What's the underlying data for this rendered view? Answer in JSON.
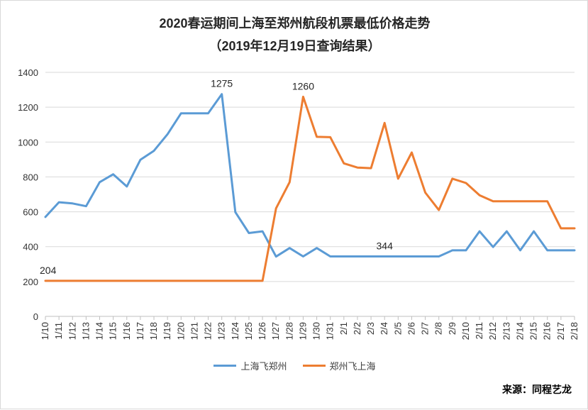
{
  "chart_data": {
    "type": "line",
    "title": "2020春运期间上海至郑州航段机票最低价格走势",
    "subtitle": "（2019年12月19日查询结果）",
    "categories": [
      "1/10",
      "1/11",
      "1/12",
      "1/13",
      "1/14",
      "1/15",
      "1/16",
      "1/17",
      "1/18",
      "1/19",
      "1/20",
      "1/21",
      "1/22",
      "1/23",
      "1/24",
      "1/25",
      "1/26",
      "1/27",
      "1/28",
      "1/29",
      "1/30",
      "1/31",
      "2/1",
      "2/2",
      "2/3",
      "2/4",
      "2/5",
      "2/6",
      "2/7",
      "2/8",
      "2/9",
      "2/10",
      "2/11",
      "2/12",
      "2/13",
      "2/14",
      "2/15",
      "2/16",
      "2/17",
      "2/18"
    ],
    "ylim": [
      0,
      1400
    ],
    "yticks": [
      0,
      200,
      400,
      600,
      800,
      1000,
      1200,
      1400
    ],
    "grid": true,
    "legend_position": "bottom",
    "series": [
      {
        "name": "上海飞郑州",
        "color": "#5b9bd5",
        "values": [
          570,
          655,
          648,
          632,
          770,
          815,
          745,
          898,
          950,
          1045,
          1165,
          1165,
          1165,
          1275,
          598,
          478,
          488,
          343,
          392,
          344,
          392,
          344,
          344,
          344,
          344,
          344,
          344,
          344,
          344,
          344,
          379,
          379,
          488,
          398,
          488,
          379,
          488,
          379,
          379,
          379
        ]
      },
      {
        "name": "郑州飞上海",
        "color": "#ed7d31",
        "values": [
          204,
          204,
          204,
          204,
          204,
          204,
          204,
          204,
          204,
          204,
          204,
          204,
          204,
          204,
          204,
          204,
          204,
          620,
          770,
          1260,
          1030,
          1028,
          878,
          854,
          850,
          1110,
          790,
          940,
          710,
          610,
          790,
          765,
          695,
          660,
          660,
          660,
          660,
          660,
          505,
          505
        ]
      }
    ],
    "annotations": [
      {
        "text": "1275",
        "series": 0,
        "index": 13
      },
      {
        "text": "1260",
        "series": 1,
        "index": 19
      },
      {
        "text": "344",
        "series": 0,
        "index": 25
      },
      {
        "text": "204",
        "series": 1,
        "index": 0
      }
    ]
  },
  "source": "来源：同程艺龙"
}
